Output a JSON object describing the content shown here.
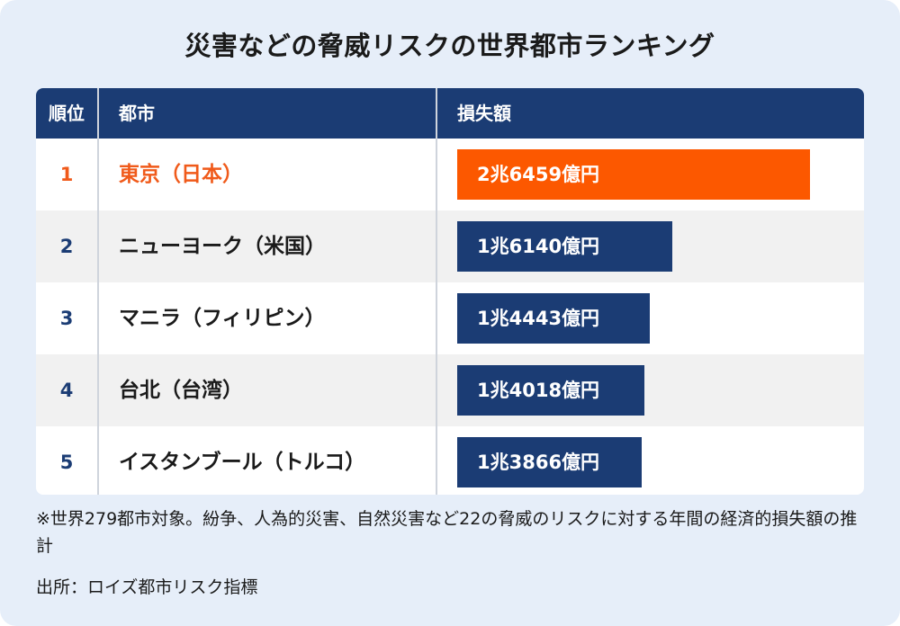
{
  "title": "災害などの脅威リスクの世界都市ランキング",
  "headers": {
    "rank": "順位",
    "city": "都市",
    "loss": "損失額"
  },
  "colors": {
    "header_bg": "#1b3c74",
    "bar": "#1b3c74",
    "bar_top": "#fc5800",
    "top_text": "#f05a1a",
    "card_bg": "#e6eef9"
  },
  "chart_data": {
    "type": "bar",
    "orientation": "horizontal",
    "title": "災害などの脅威リスクの世界都市ランキング",
    "categories": [
      "東京（日本）",
      "ニューヨーク（米国）",
      "マニラ（フィリピン）",
      "台北（台湾）",
      "イスタンブール（トルコ）"
    ],
    "ranks": [
      "1",
      "2",
      "3",
      "4",
      "5"
    ],
    "values": [
      26459,
      16140,
      14443,
      14018,
      13866
    ],
    "value_unit": "億円",
    "labels": [
      "2兆6459億円",
      "1兆6140億円",
      "1兆4443億円",
      "1兆4018億円",
      "1兆3866億円"
    ],
    "highlight_index": 0
  },
  "note": "※世界279都市対象。紛争、人為的災害、自然災害など22の脅威のリスクに対する年間の経済的損失額の推計",
  "source": "出所：ロイズ都市リスク指標"
}
